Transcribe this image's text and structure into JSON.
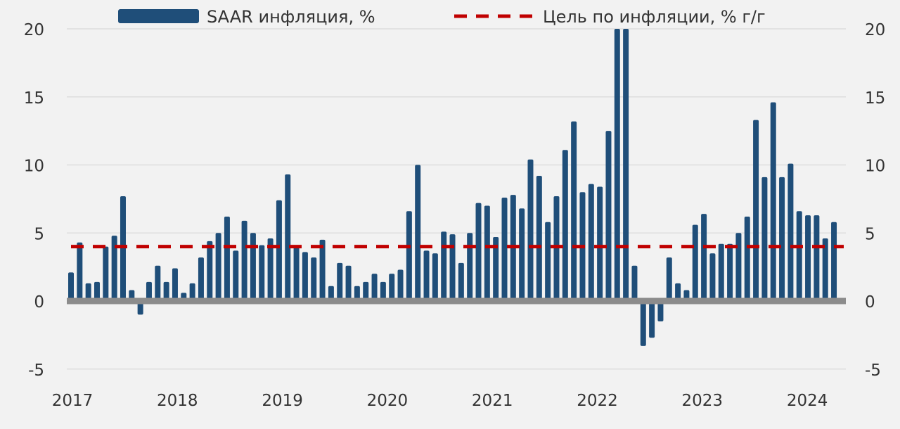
{
  "chart_data": {
    "type": "bar",
    "title": "",
    "xlabel": "",
    "ylabel": "",
    "ylim": [
      -5,
      20
    ],
    "y_ticks": [
      -5,
      0,
      5,
      10,
      15,
      20
    ],
    "y_tick_labels": [
      "-5",
      "0",
      "5",
      "10",
      "15",
      "20"
    ],
    "x_tick_labels": [
      "2017",
      "2018",
      "2019",
      "2020",
      "2021",
      "2022",
      "2023",
      "2024"
    ],
    "grid": true,
    "legend_position": "top",
    "colors": {
      "bars": "#1f4e79",
      "target": "#c00000",
      "zero_line": "#8c8c8c",
      "grid": "#dddddd"
    },
    "series": [
      {
        "name": "SAAR инфляция, %",
        "type": "bar",
        "start": "2017-01",
        "frequency": "monthly",
        "values": [
          2.1,
          4.3,
          1.3,
          1.4,
          4.0,
          4.8,
          7.7,
          0.8,
          -1.0,
          1.4,
          2.6,
          1.4,
          2.4,
          0.6,
          1.3,
          3.2,
          4.4,
          5.0,
          6.2,
          3.7,
          5.9,
          5.0,
          4.1,
          4.6,
          7.4,
          9.3,
          4.0,
          3.6,
          3.2,
          4.5,
          1.1,
          2.8,
          2.6,
          1.1,
          1.4,
          2.0,
          1.4,
          2.0,
          2.3,
          6.6,
          10.0,
          3.7,
          3.5,
          5.1,
          4.9,
          2.8,
          5.0,
          7.2,
          7.0,
          4.7,
          7.6,
          7.8,
          6.8,
          10.4,
          9.2,
          5.8,
          7.7,
          11.1,
          13.2,
          8.0,
          8.6,
          8.4,
          12.5,
          20.0,
          20.0,
          2.6,
          -3.3,
          -2.7,
          -1.5,
          3.2,
          1.3,
          0.8,
          5.6,
          6.4,
          3.5,
          4.2,
          4.2,
          5.0,
          6.2,
          13.3,
          9.1,
          14.6,
          9.1,
          10.1,
          6.6,
          6.3,
          6.3,
          4.6,
          5.8
        ]
      },
      {
        "name": "Цель по инфляции, % г/г",
        "type": "line",
        "style": "dashed",
        "value": 4.0
      }
    ]
  }
}
